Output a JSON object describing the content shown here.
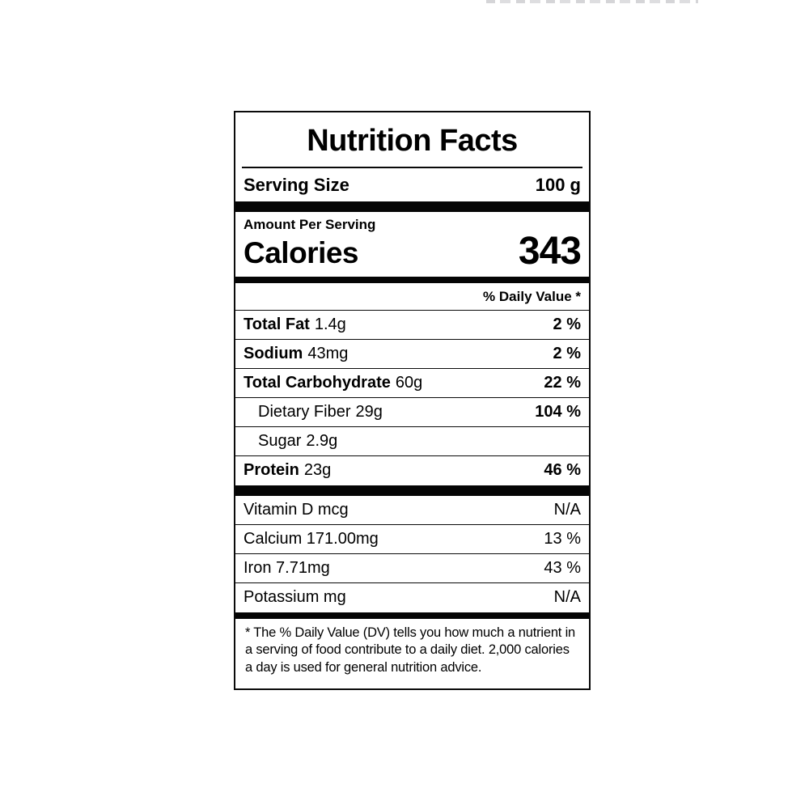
{
  "label": {
    "title": "Nutrition Facts",
    "serving": {
      "label": "Serving Size",
      "value": "100 g"
    },
    "amount_per_serving": "Amount Per Serving",
    "calories": {
      "label": "Calories",
      "value": "343"
    },
    "daily_value_header": "% Daily Value *",
    "nutrients": [
      {
        "name": "Total Fat",
        "amount": "1.4g",
        "dv": "2 %"
      },
      {
        "name": "Sodium",
        "amount": "43mg",
        "dv": "2 %"
      },
      {
        "name": "Total Carbohydrate",
        "amount": "60g",
        "dv": "22 %"
      },
      {
        "name": "Dietary Fiber",
        "amount": "29g",
        "dv": "104 %"
      },
      {
        "name": "Sugar",
        "amount": "2.9g",
        "dv": ""
      },
      {
        "name": "Protein",
        "amount": "23g",
        "dv": "46 %"
      }
    ],
    "vitamins": [
      {
        "name": "Vitamin D mcg",
        "dv": "N/A"
      },
      {
        "name": "Calcium 171.00mg",
        "dv": "13 %"
      },
      {
        "name": "Iron 7.71mg",
        "dv": "43 %"
      },
      {
        "name": "Potassium mg",
        "dv": "N/A"
      }
    ],
    "footnote": "* The % Daily Value (DV) tells you how much a nutrient in a serving of food contribute to a daily diet. 2,000 calories a day is used for general nutrition advice.",
    "colors": {
      "text": "#000000",
      "border": "#0a0a0a",
      "background": "#ffffff"
    }
  }
}
